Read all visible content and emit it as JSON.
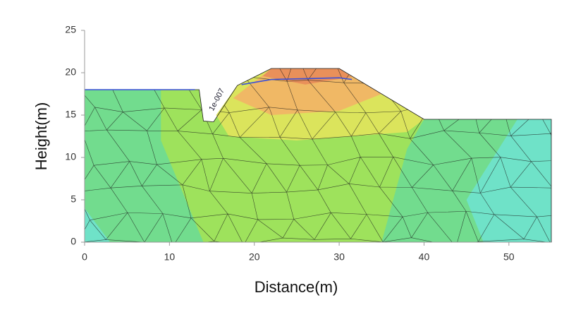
{
  "chart_data": {
    "type": "contour",
    "x_label": "Distance(m)",
    "y_label": "Height(m)",
    "xlim": [
      0,
      55
    ],
    "ylim": [
      0,
      25
    ],
    "xticks": [
      0,
      10,
      20,
      30,
      40,
      50
    ],
    "yticks": [
      0,
      5,
      10,
      15,
      20,
      25
    ],
    "annotation": "1e-007",
    "mesh_color": "#1a1a1a",
    "regions": [
      {
        "color": "#72dc8e",
        "x": [
          0,
          55,
          55,
          40,
          30,
          22,
          18,
          15.2,
          14,
          13.5,
          0
        ],
        "y": [
          0,
          0,
          14.5,
          14.5,
          20.5,
          20.5,
          18.5,
          14.2,
          14.3,
          18,
          18
        ]
      },
      {
        "color": "#9ee25c",
        "x": [
          9,
          13.5,
          14,
          15.2,
          18,
          22,
          30,
          40,
          38,
          35,
          14,
          9
        ],
        "y": [
          18,
          18,
          14.3,
          14.2,
          18.5,
          20.5,
          20.5,
          14.5,
          11,
          0,
          0,
          12
        ]
      },
      {
        "color": "#dbe45c",
        "x": [
          15.5,
          17,
          25,
          38,
          40,
          30,
          22,
          18
        ],
        "y": [
          15,
          12.5,
          12,
          13,
          14.5,
          20.5,
          20.5,
          18.5
        ]
      },
      {
        "color": "#f0b865",
        "x": [
          17.5,
          22,
          30,
          35,
          30,
          22
        ],
        "y": [
          17,
          20.5,
          20.5,
          17.5,
          15.5,
          15
        ]
      },
      {
        "color": "#e9905a",
        "x": [
          21,
          22,
          30,
          31.5,
          26
        ],
        "y": [
          19.6,
          20.5,
          20.5,
          19.5,
          18.6
        ]
      },
      {
        "color": "#6fe2c8",
        "x": [
          47,
          55,
          55,
          51,
          45
        ],
        "y": [
          0,
          0,
          14.5,
          14.5,
          5
        ]
      },
      {
        "color": "#6fe2c8",
        "x": [
          0,
          3,
          0
        ],
        "y": [
          0,
          0,
          4
        ]
      }
    ],
    "lines": [
      {
        "color": "#3a4fd8",
        "x": [
          0,
          13
        ],
        "y": [
          18,
          18
        ]
      },
      {
        "color": "#3a4fd8",
        "x": [
          18.5,
          22,
          26,
          30,
          31.5
        ],
        "y": [
          18.6,
          19.2,
          19.3,
          19.4,
          19.2
        ]
      }
    ]
  }
}
